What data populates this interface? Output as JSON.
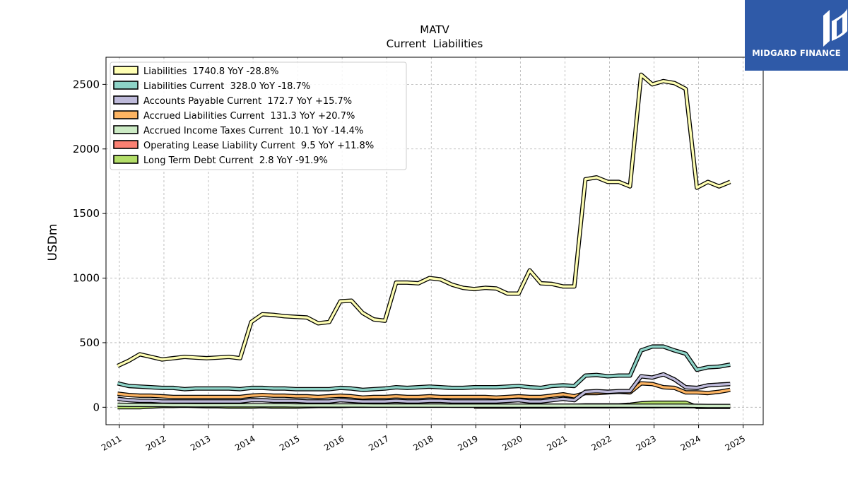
{
  "brand": {
    "name": "MIDGARD FINANCE",
    "color": "#2f5aa8"
  },
  "chart_data": {
    "type": "line",
    "title": "MATV",
    "subtitle": "Current  Liabilities",
    "ylabel": "USDm",
    "xlabel": "",
    "xlim": [
      2010.7,
      2025.45
    ],
    "ylim": [
      -135,
      2710
    ],
    "grid": true,
    "legend_position": "top-left",
    "x_ticks": [
      2011,
      2012,
      2013,
      2014,
      2015,
      2016,
      2017,
      2018,
      2019,
      2020,
      2021,
      2022,
      2023,
      2024,
      2025
    ],
    "x_tick_labels": [
      "2011",
      "2012",
      "2013",
      "2014",
      "2015",
      "2016",
      "2017",
      "2018",
      "2019",
      "2020",
      "2021",
      "2022",
      "2023",
      "2024",
      "2025"
    ],
    "y_ticks": [
      0,
      500,
      1000,
      1500,
      2000,
      2500
    ],
    "y_tick_labels": [
      "0",
      "500",
      "1000",
      "1500",
      "2000",
      "2500"
    ],
    "x": [
      2010.96,
      2011.21,
      2011.46,
      2011.71,
      2011.96,
      2012.21,
      2012.46,
      2012.71,
      2012.96,
      2013.21,
      2013.46,
      2013.71,
      2013.96,
      2014.21,
      2014.46,
      2014.71,
      2014.96,
      2015.21,
      2015.46,
      2015.71,
      2015.96,
      2016.21,
      2016.46,
      2016.71,
      2016.96,
      2017.21,
      2017.46,
      2017.71,
      2017.96,
      2018.21,
      2018.46,
      2018.71,
      2018.96,
      2019.21,
      2019.46,
      2019.71,
      2019.96,
      2020.21,
      2020.46,
      2020.71,
      2020.96,
      2021.21,
      2021.46,
      2021.71,
      2021.96,
      2022.21,
      2022.46,
      2022.71,
      2022.96,
      2023.21,
      2023.46,
      2023.71,
      2023.96,
      2024.21,
      2024.46,
      2024.71
    ],
    "series": [
      {
        "name": "Liabilities",
        "legend": "Liabilities  1740.8 YoY -28.8%",
        "color": "#ffffb3",
        "values": [
          320,
          360,
          410,
          390,
          370,
          380,
          390,
          385,
          380,
          385,
          390,
          380,
          660,
          720,
          715,
          705,
          700,
          695,
          650,
          660,
          820,
          825,
          730,
          680,
          670,
          965,
          965,
          960,
          1000,
          990,
          950,
          925,
          915,
          925,
          920,
          880,
          880,
          1060,
          960,
          955,
          935,
          935,
          1765,
          1780,
          1745,
          1745,
          1710,
          2575,
          2500,
          2525,
          2510,
          2465,
          1700,
          1745,
          1710,
          1745
        ]
      },
      {
        "name": "Liabilities Current",
        "legend": "Liabilities Current  328.0 YoY -18.7%",
        "color": "#8dd3c7",
        "values": [
          185,
          165,
          160,
          155,
          150,
          150,
          140,
          145,
          145,
          145,
          145,
          140,
          150,
          150,
          145,
          145,
          140,
          140,
          140,
          140,
          150,
          145,
          135,
          140,
          145,
          155,
          150,
          155,
          160,
          155,
          150,
          150,
          155,
          155,
          155,
          160,
          165,
          155,
          150,
          165,
          170,
          165,
          245,
          250,
          240,
          245,
          245,
          440,
          470,
          470,
          440,
          415,
          290,
          310,
          315,
          330
        ]
      },
      {
        "name": "Accounts Payable Current",
        "legend": "Accounts Payable Current  172.7 YoY +15.7%",
        "color": "#bebada",
        "values": [
          65,
          55,
          50,
          50,
          45,
          45,
          45,
          45,
          45,
          45,
          45,
          45,
          55,
          55,
          50,
          50,
          50,
          45,
          45,
          45,
          55,
          50,
          45,
          45,
          45,
          50,
          45,
          45,
          50,
          50,
          45,
          45,
          45,
          45,
          45,
          50,
          55,
          45,
          45,
          55,
          65,
          55,
          120,
          125,
          120,
          125,
          125,
          240,
          230,
          255,
          215,
          155,
          150,
          170,
          175,
          180
        ]
      },
      {
        "name": "Accrued Liabilities Current",
        "legend": "Accrued Liabilities Current  131.3 YoY +20.7%",
        "color": "#fdb462",
        "values": [
          105,
          95,
          90,
          90,
          85,
          80,
          80,
          80,
          80,
          80,
          80,
          80,
          90,
          95,
          90,
          90,
          85,
          85,
          80,
          85,
          90,
          85,
          75,
          80,
          80,
          85,
          80,
          80,
          85,
          80,
          80,
          80,
          80,
          80,
          75,
          80,
          85,
          80,
          80,
          90,
          100,
          85,
          110,
          110,
          115,
          120,
          115,
          185,
          180,
          155,
          150,
          115,
          115,
          110,
          120,
          135
        ]
      },
      {
        "name": "Accrued Income Taxes Current",
        "legend": "Accrued Income Taxes Current  10.1 YoY -14.4%",
        "color": "#ccebc5",
        "values": [
          20,
          18,
          18,
          17,
          17,
          16,
          16,
          15,
          15,
          15,
          15,
          15,
          15,
          15,
          15,
          15,
          14,
          14,
          14,
          14,
          14,
          14,
          14,
          13,
          13,
          13,
          13,
          13,
          13,
          13,
          12,
          12,
          12,
          12,
          12,
          12,
          12,
          12,
          12,
          12,
          12,
          12,
          12,
          12,
          12,
          12,
          12,
          12,
          12,
          12,
          12,
          12,
          11,
          10,
          10,
          10
        ]
      },
      {
        "name": "Operating Lease Liability Current",
        "legend": "Operating Lease Liability Current  9.5 YoY +11.8%",
        "color": "#fb8072",
        "values": [
          null,
          null,
          null,
          null,
          null,
          null,
          null,
          null,
          null,
          null,
          null,
          null,
          null,
          null,
          null,
          null,
          null,
          null,
          null,
          null,
          null,
          null,
          null,
          null,
          null,
          null,
          null,
          null,
          null,
          null,
          null,
          null,
          5,
          5,
          5,
          5,
          6,
          6,
          6,
          6,
          7,
          7,
          7,
          7,
          7,
          8,
          8,
          8,
          8,
          9,
          9,
          9,
          8,
          9,
          9,
          9.5
        ]
      },
      {
        "name": "Long Term Debt Current",
        "legend": "Long Term Debt Current  2.8 YoY -91.9%",
        "color": "#b3de69",
        "values": [
          0,
          0,
          0,
          5,
          10,
          10,
          12,
          10,
          8,
          8,
          5,
          5,
          5,
          8,
          5,
          5,
          5,
          8,
          10,
          10,
          10,
          12,
          12,
          12,
          12,
          12,
          12,
          12,
          12,
          12,
          12,
          12,
          12,
          12,
          12,
          12,
          12,
          12,
          12,
          12,
          12,
          12,
          15,
          15,
          15,
          15,
          20,
          30,
          35,
          35,
          35,
          35,
          3,
          3,
          3,
          2.8
        ]
      }
    ]
  }
}
